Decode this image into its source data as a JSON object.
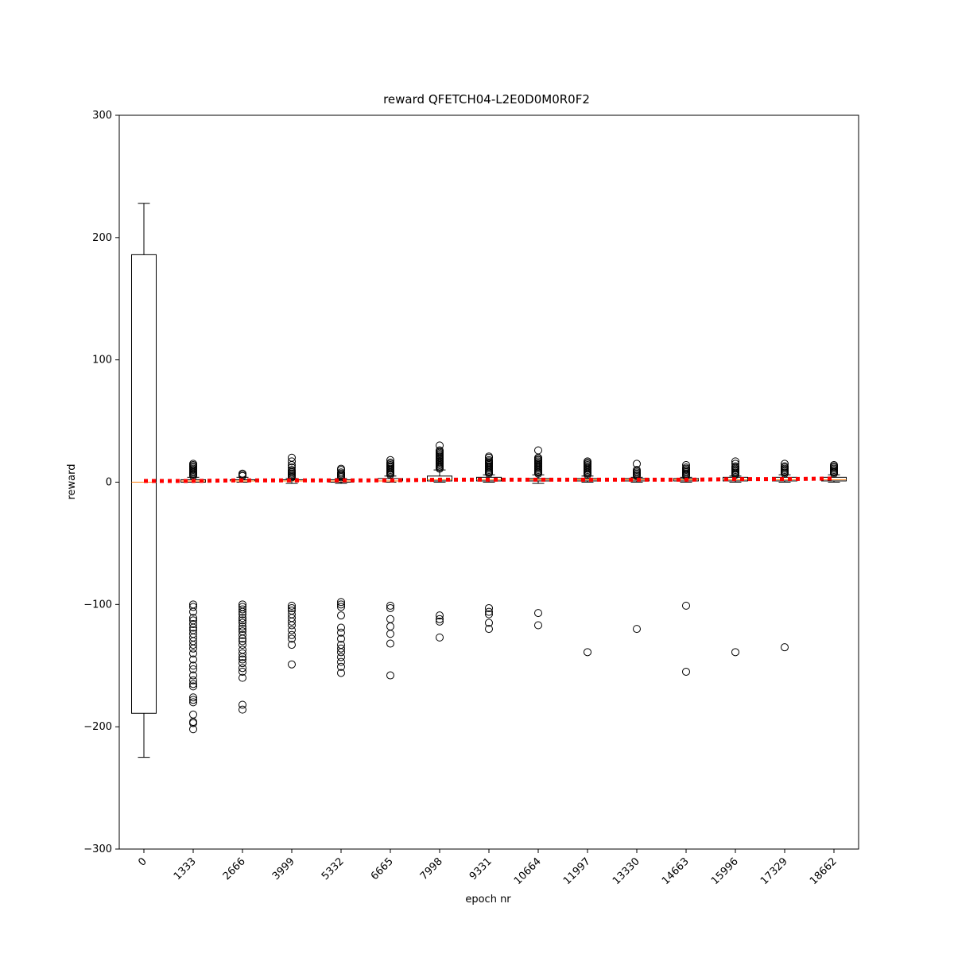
{
  "chart_data": {
    "type": "box",
    "title": "reward QFETCH04-L2E0D0M0R0F2",
    "x_label": "epoch nr",
    "y_label": "reward",
    "categories": [
      "0",
      "1333",
      "2666",
      "3999",
      "5332",
      "6665",
      "7998",
      "9331",
      "10664",
      "11997",
      "13330",
      "14663",
      "15996",
      "17329",
      "18662"
    ],
    "box_color": "#000000",
    "median_color": "#ff7f0e",
    "boxes": [
      {
        "whislo": -225,
        "q1": -189,
        "med": 0,
        "q3": 186,
        "whishi": 228,
        "fliers": []
      },
      {
        "whislo": 0,
        "q1": 0,
        "med": 1,
        "q3": 2,
        "whishi": 4,
        "fliers": [
          5,
          6,
          7,
          8,
          9,
          10,
          11,
          12,
          13,
          14,
          15,
          -100,
          -102,
          -106,
          -111,
          -113,
          -116,
          -119,
          -121,
          -124,
          -127,
          -130,
          -133,
          -136,
          -140,
          -145,
          -150,
          -153,
          -158,
          -162,
          -165,
          -167,
          -176,
          -178,
          -180,
          -190,
          -196,
          -197,
          -202
        ]
      },
      {
        "whislo": 0,
        "q1": 1,
        "med": 1,
        "q3": 2,
        "whishi": 4,
        "fliers": [
          5,
          6,
          7,
          -100,
          -102,
          -104,
          -106,
          -108,
          -111,
          -113,
          -115,
          -118,
          -120,
          -122,
          -125,
          -128,
          -130,
          -133,
          -137,
          -140,
          -143,
          -145,
          -148,
          -152,
          -155,
          -160,
          -182,
          -186
        ]
      },
      {
        "whislo": -1,
        "q1": 1,
        "med": 1,
        "q3": 2,
        "whishi": 3,
        "fliers": [
          4,
          5,
          6,
          7,
          8,
          9,
          10,
          12,
          14,
          17,
          20,
          -101,
          -103,
          -105,
          -108,
          -111,
          -114,
          -117,
          -121,
          -125,
          -128,
          -133,
          -149
        ]
      },
      {
        "whislo": -1,
        "q1": 0,
        "med": 1,
        "q3": 2,
        "whishi": 3,
        "fliers": [
          4,
          5,
          6,
          7,
          8,
          10,
          11,
          -98,
          -100,
          -102,
          -109,
          -119,
          -123,
          -128,
          -133,
          -136,
          -139,
          -143,
          -147,
          -151,
          -156
        ]
      },
      {
        "whislo": 0,
        "q1": 1,
        "med": 1,
        "q3": 3,
        "whishi": 5,
        "fliers": [
          6,
          7,
          8,
          9,
          10,
          11,
          12,
          13,
          14,
          15,
          16,
          18,
          -101,
          -103,
          -112,
          -118,
          -124,
          -132,
          -158
        ]
      },
      {
        "whislo": 0,
        "q1": 1,
        "med": 2,
        "q3": 5,
        "whishi": 10,
        "fliers": [
          11,
          12,
          13,
          14,
          15,
          16,
          17,
          18,
          19,
          20,
          21,
          22,
          23,
          24,
          25,
          26,
          30,
          -109,
          -112,
          -114,
          -127
        ]
      },
      {
        "whislo": 0,
        "q1": 1,
        "med": 2,
        "q3": 4,
        "whishi": 6,
        "fliers": [
          7,
          8,
          9,
          10,
          11,
          12,
          13,
          14,
          15,
          16,
          17,
          18,
          20,
          21,
          -103,
          -106,
          -108,
          -115,
          -120
        ]
      },
      {
        "whislo": -1,
        "q1": 1,
        "med": 2,
        "q3": 3,
        "whishi": 6,
        "fliers": [
          7,
          8,
          9,
          10,
          11,
          12,
          13,
          14,
          15,
          16,
          17,
          18,
          19,
          20,
          26,
          -107,
          -117
        ]
      },
      {
        "whislo": 0,
        "q1": 1,
        "med": 2,
        "q3": 3,
        "whishi": 5,
        "fliers": [
          6,
          7,
          8,
          9,
          10,
          11,
          12,
          13,
          14,
          15,
          16,
          17,
          -139
        ]
      },
      {
        "whislo": 0,
        "q1": 1,
        "med": 2,
        "q3": 3,
        "whishi": 4,
        "fliers": [
          5,
          6,
          7,
          8,
          9,
          10,
          15,
          -120
        ]
      },
      {
        "whislo": 0,
        "q1": 1,
        "med": 2,
        "q3": 3,
        "whishi": 4,
        "fliers": [
          5,
          6,
          7,
          8,
          9,
          10,
          11,
          12,
          14,
          -101,
          -155
        ]
      },
      {
        "whislo": 0,
        "q1": 1,
        "med": 2,
        "q3": 4,
        "whishi": 5,
        "fliers": [
          6,
          7,
          8,
          9,
          10,
          11,
          12,
          13,
          15,
          17,
          -139
        ]
      },
      {
        "whislo": 0,
        "q1": 1,
        "med": 2,
        "q3": 4,
        "whishi": 6,
        "fliers": [
          7,
          8,
          9,
          10,
          11,
          12,
          13,
          15,
          -135
        ]
      },
      {
        "whislo": 0,
        "q1": 1,
        "med": 2,
        "q3": 4,
        "whishi": 6,
        "fliers": [
          7,
          8,
          9,
          10,
          11,
          12,
          13,
          14
        ]
      }
    ],
    "trend": {
      "color": "#ff0000",
      "values": [
        1,
        1,
        1.5,
        1.5,
        1.5,
        1.5,
        2,
        2,
        2,
        2,
        2,
        2,
        2.5,
        2.5,
        3
      ]
    },
    "ylim": [
      -300,
      300
    ],
    "yticks": [
      {
        "value": -300,
        "label": "−300"
      },
      {
        "value": -200,
        "label": "−200"
      },
      {
        "value": -100,
        "label": "−100"
      },
      0,
      100,
      200,
      300
    ]
  }
}
